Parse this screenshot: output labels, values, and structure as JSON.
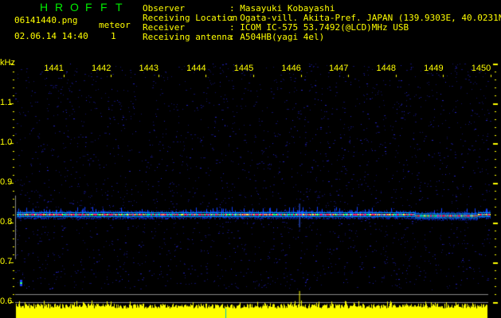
{
  "app": {
    "title_letters": [
      "H",
      "R",
      "O",
      "F",
      "F",
      "T"
    ]
  },
  "header": {
    "filename": "06141440.png",
    "datetime": "02.06.14 14:40",
    "meteor_label": "meteor",
    "meteor_count": "1",
    "fields": [
      {
        "label": "Observer",
        "value": ": Masayuki Kobayashi"
      },
      {
        "label": "Receiving Location",
        "value": ": Ogata-vill. Akita-Pref. JAPAN (139.9303E, 40.0231N)"
      },
      {
        "label": "Receiver",
        "value": ": ICOM IC-575 53.7492(@LCD)MHz USB"
      },
      {
        "label": "Receiving antenna",
        "value": ": A504HB(yagi 4el)"
      }
    ]
  },
  "colors": {
    "text": "#ffff00",
    "title": "#00ee00",
    "signal": "#ff2a6a",
    "background": "#000000",
    "noise": "#1a1aa0",
    "level_bars": "#ffff00"
  },
  "chart_data": {
    "type": "heatmap",
    "ylabel": "kHz",
    "ylim": [
      0.58,
      1.2
    ],
    "yticks": [
      "1.1",
      "1.0",
      "0.9",
      "0.8",
      "0.7",
      "0.6"
    ],
    "xticks": [
      "1441",
      "1442",
      "1443",
      "1444",
      "1445",
      "1446",
      "1447",
      "1448",
      "1449",
      "1450"
    ],
    "xlim": [
      1440,
      1450
    ],
    "carrier_khz": 0.82,
    "meteor_echoes": [
      {
        "time": "1440",
        "khz": 0.65
      }
    ],
    "level_spike_time": "1446"
  }
}
